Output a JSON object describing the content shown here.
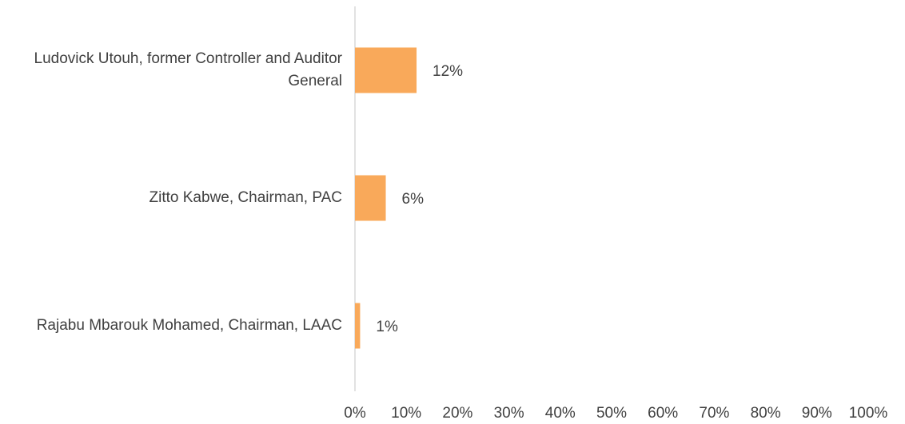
{
  "chart_data": {
    "type": "bar",
    "orientation": "horizontal",
    "categories": [
      "Ludovick Utouh, former Controller and Auditor General",
      "Zitto Kabwe, Chairman, PAC",
      "Rajabu Mbarouk Mohamed, Chairman, LAAC"
    ],
    "values": [
      12,
      6,
      1
    ],
    "value_labels": [
      "12%",
      "6%",
      "1%"
    ],
    "color": "#f9a95a",
    "xlim": [
      0,
      100
    ],
    "xticks": [
      {
        "value": 0,
        "label": "0%"
      },
      {
        "value": 10,
        "label": "10%"
      },
      {
        "value": 20,
        "label": "20%"
      },
      {
        "value": 30,
        "label": "30%"
      },
      {
        "value": 40,
        "label": "40%"
      },
      {
        "value": 50,
        "label": "50%"
      },
      {
        "value": 60,
        "label": "60%"
      },
      {
        "value": 70,
        "label": "70%"
      },
      {
        "value": 80,
        "label": "80%"
      },
      {
        "value": 90,
        "label": "90%"
      },
      {
        "value": 100,
        "label": "100%"
      }
    ],
    "grid": false
  }
}
